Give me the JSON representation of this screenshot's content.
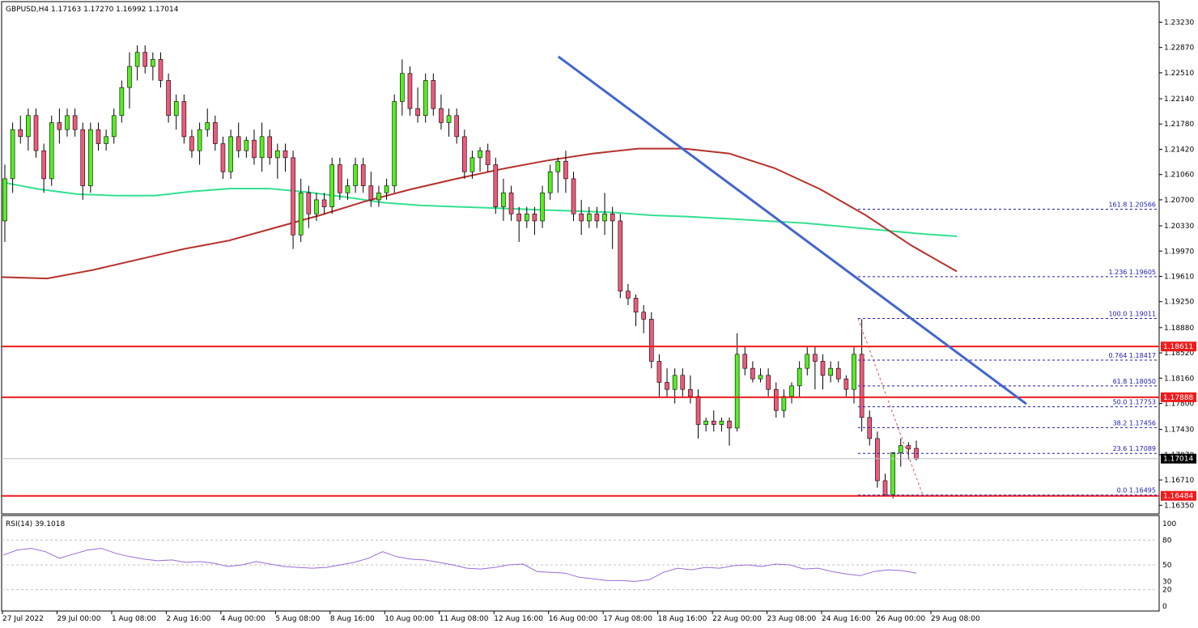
{
  "header": {
    "text": "GBPUSD,H4  1.17163 1.17270 1.16992 1.17014"
  },
  "rsi": {
    "label": "RSI(14) 39.1018",
    "ticks": [
      "100",
      "80",
      "50",
      "30",
      "20",
      "0"
    ],
    "levels": [
      100,
      80,
      50,
      30,
      20,
      0
    ]
  },
  "colors": {
    "bull": "#55ee22",
    "bear": "#ee5a7a",
    "ma_fast": "#b5302a",
    "ma_slow": "#33e090",
    "trend": "#4466cc",
    "hline": "#ee1c1c",
    "fib": "#1b1bb0",
    "rsi": "#9b6bd6"
  },
  "chart_data": {
    "type": "candlestick",
    "symbol": "GBPUSD",
    "timeframe": "H4",
    "ylim": [
      1.1625,
      1.235
    ],
    "y_ticks": [
      "1.23230",
      "1.22870",
      "1.22510",
      "1.22140",
      "1.21780",
      "1.21420",
      "1.21060",
      "1.20700",
      "1.20330",
      "1.19970",
      "1.19610",
      "1.19250",
      "1.18880",
      "1.18520",
      "1.18160",
      "1.17800",
      "1.17430",
      "1.17070",
      "1.16710",
      "1.16350"
    ],
    "x_labels": [
      "27 Jul 2022",
      "29 Jul 00:00",
      "1 Aug 08:00",
      "2 Aug 16:00",
      "4 Aug 00:00",
      "5 Aug 08:00",
      "8 Aug 16:00",
      "10 Aug 00:00",
      "11 Aug 08:00",
      "12 Aug 16:00",
      "16 Aug 00:00",
      "17 Aug 08:00",
      "18 Aug 16:00",
      "22 Aug 00:00",
      "23 Aug 08:00",
      "24 Aug 16:00",
      "26 Aug 00:00",
      "29 Aug 08:00"
    ],
    "price_labels": {
      "current": "1.17014",
      "resistance_1": "1.18611",
      "resistance_2": "1.17888",
      "support": "1.16484"
    },
    "horizontal_levels": [
      1.18611,
      1.17888,
      1.16484
    ],
    "current_price": 1.17014,
    "fibonacci": [
      {
        "label": "161.8 1.20566",
        "price": 1.20566
      },
      {
        "label": "1.236 1.19605",
        "price": 1.19605
      },
      {
        "label": "100.0 1.19011",
        "price": 1.19011
      },
      {
        "label": "0.764 1.18417",
        "price": 1.18417
      },
      {
        "label": "61.8 1.18050",
        "price": 1.1805
      },
      {
        "label": "50.0 1.17753",
        "price": 1.17753
      },
      {
        "label": "38.2 1.17456",
        "price": 1.17456
      },
      {
        "label": "23.6 1.17089",
        "price": 1.17089
      },
      {
        "label": "0.0 1.16495",
        "price": 1.16495
      }
    ],
    "candles": [
      [
        1.204,
        1.212,
        1.201,
        1.21
      ],
      [
        1.21,
        1.218,
        1.208,
        1.217
      ],
      [
        1.217,
        1.219,
        1.215,
        1.216
      ],
      [
        1.216,
        1.22,
        1.214,
        1.219
      ],
      [
        1.219,
        1.22,
        1.213,
        1.214
      ],
      [
        1.214,
        1.215,
        1.208,
        1.21
      ],
      [
        1.21,
        1.219,
        1.209,
        1.218
      ],
      [
        1.218,
        1.22,
        1.215,
        1.217
      ],
      [
        1.217,
        1.22,
        1.216,
        1.219
      ],
      [
        1.219,
        1.22,
        1.216,
        1.217
      ],
      [
        1.217,
        1.218,
        1.207,
        1.209
      ],
      [
        1.209,
        1.218,
        1.208,
        1.217
      ],
      [
        1.217,
        1.218,
        1.214,
        1.215
      ],
      [
        1.215,
        1.217,
        1.214,
        1.216
      ],
      [
        1.216,
        1.22,
        1.215,
        1.219
      ],
      [
        1.219,
        1.224,
        1.218,
        1.223
      ],
      [
        1.223,
        1.228,
        1.22,
        1.226
      ],
      [
        1.226,
        1.229,
        1.224,
        1.228
      ],
      [
        1.228,
        1.229,
        1.225,
        1.226
      ],
      [
        1.226,
        1.228,
        1.224,
        1.227
      ],
      [
        1.227,
        1.228,
        1.223,
        1.224
      ],
      [
        1.224,
        1.225,
        1.218,
        1.219
      ],
      [
        1.219,
        1.222,
        1.217,
        1.221
      ],
      [
        1.221,
        1.222,
        1.215,
        1.216
      ],
      [
        1.216,
        1.217,
        1.213,
        1.214
      ],
      [
        1.214,
        1.218,
        1.212,
        1.217
      ],
      [
        1.217,
        1.22,
        1.216,
        1.218
      ],
      [
        1.218,
        1.219,
        1.214,
        1.215
      ],
      [
        1.215,
        1.216,
        1.21,
        1.211
      ],
      [
        1.211,
        1.217,
        1.21,
        1.216
      ],
      [
        1.216,
        1.218,
        1.213,
        1.214
      ],
      [
        1.214,
        1.216,
        1.213,
        1.2155
      ],
      [
        1.2155,
        1.217,
        1.212,
        1.213
      ],
      [
        1.213,
        1.218,
        1.211,
        1.216
      ],
      [
        1.216,
        1.217,
        1.212,
        1.213
      ],
      [
        1.213,
        1.215,
        1.21,
        1.214
      ],
      [
        1.214,
        1.215,
        1.211,
        1.213
      ],
      [
        1.213,
        1.214,
        1.2,
        1.202
      ],
      [
        1.202,
        1.21,
        1.201,
        1.208
      ],
      [
        1.208,
        1.209,
        1.203,
        1.205
      ],
      [
        1.205,
        1.208,
        1.204,
        1.207
      ],
      [
        1.207,
        1.208,
        1.205,
        1.206
      ],
      [
        1.206,
        1.213,
        1.205,
        1.212
      ],
      [
        1.212,
        1.213,
        1.207,
        1.208
      ],
      [
        1.208,
        1.21,
        1.207,
        1.209
      ],
      [
        1.209,
        1.213,
        1.208,
        1.212
      ],
      [
        1.212,
        1.213,
        1.208,
        1.209
      ],
      [
        1.209,
        1.211,
        1.206,
        1.207
      ],
      [
        1.207,
        1.209,
        1.206,
        1.208
      ],
      [
        1.208,
        1.21,
        1.207,
        1.209
      ],
      [
        1.209,
        1.222,
        1.208,
        1.221
      ],
      [
        1.221,
        1.227,
        1.219,
        1.225
      ],
      [
        1.225,
        1.226,
        1.219,
        1.22
      ],
      [
        1.22,
        1.223,
        1.218,
        1.219
      ],
      [
        1.219,
        1.225,
        1.218,
        1.224
      ],
      [
        1.224,
        1.225,
        1.219,
        1.22
      ],
      [
        1.22,
        1.222,
        1.217,
        1.218
      ],
      [
        1.218,
        1.22,
        1.216,
        1.219
      ],
      [
        1.219,
        1.22,
        1.215,
        1.216
      ],
      [
        1.216,
        1.217,
        1.21,
        1.211
      ],
      [
        1.211,
        1.214,
        1.21,
        1.213
      ],
      [
        1.213,
        1.2145,
        1.211,
        1.214
      ],
      [
        1.214,
        1.215,
        1.211,
        1.212
      ],
      [
        1.212,
        1.213,
        1.205,
        1.206
      ],
      [
        1.206,
        1.21,
        1.204,
        1.208
      ],
      [
        1.208,
        1.209,
        1.204,
        1.205
      ],
      [
        1.205,
        1.206,
        1.201,
        1.204
      ],
      [
        1.204,
        1.206,
        1.203,
        1.205
      ],
      [
        1.205,
        1.206,
        1.202,
        1.204
      ],
      [
        1.204,
        1.209,
        1.203,
        1.208
      ],
      [
        1.208,
        1.212,
        1.207,
        1.211
      ],
      [
        1.211,
        1.213,
        1.208,
        1.2125
      ],
      [
        1.2125,
        1.214,
        1.208,
        1.21
      ],
      [
        1.21,
        1.211,
        1.204,
        1.205
      ],
      [
        1.205,
        1.207,
        1.202,
        1.204
      ],
      [
        1.204,
        1.206,
        1.203,
        1.205
      ],
      [
        1.205,
        1.206,
        1.203,
        1.204
      ],
      [
        1.204,
        1.208,
        1.202,
        1.205
      ],
      [
        1.205,
        1.206,
        1.2,
        1.204
      ],
      [
        1.204,
        1.205,
        1.193,
        1.194
      ],
      [
        1.194,
        1.195,
        1.192,
        1.193
      ],
      [
        1.193,
        1.1935,
        1.189,
        1.191
      ],
      [
        1.191,
        1.192,
        1.188,
        1.19
      ],
      [
        1.19,
        1.191,
        1.183,
        1.184
      ],
      [
        1.184,
        1.185,
        1.179,
        1.181
      ],
      [
        1.181,
        1.183,
        1.179,
        1.18
      ],
      [
        1.18,
        1.183,
        1.178,
        1.182
      ],
      [
        1.182,
        1.183,
        1.179,
        1.18
      ],
      [
        1.18,
        1.182,
        1.178,
        1.179
      ],
      [
        1.179,
        1.18,
        1.173,
        1.175
      ],
      [
        1.175,
        1.176,
        1.174,
        1.1755
      ],
      [
        1.1755,
        1.177,
        1.174,
        1.175
      ],
      [
        1.175,
        1.176,
        1.174,
        1.1755
      ],
      [
        1.1755,
        1.176,
        1.172,
        1.1745
      ],
      [
        1.1745,
        1.188,
        1.174,
        1.185
      ],
      [
        1.185,
        1.186,
        1.182,
        1.183
      ],
      [
        1.183,
        1.184,
        1.181,
        1.1815
      ],
      [
        1.1815,
        1.183,
        1.181,
        1.182
      ],
      [
        1.182,
        1.183,
        1.179,
        1.18
      ],
      [
        1.18,
        1.181,
        1.176,
        1.177
      ],
      [
        1.177,
        1.18,
        1.176,
        1.179
      ],
      [
        1.179,
        1.181,
        1.178,
        1.1805
      ],
      [
        1.1805,
        1.184,
        1.179,
        1.183
      ],
      [
        1.183,
        1.186,
        1.182,
        1.185
      ],
      [
        1.185,
        1.186,
        1.18,
        1.184
      ],
      [
        1.184,
        1.185,
        1.18,
        1.182
      ],
      [
        1.182,
        1.184,
        1.181,
        1.183
      ],
      [
        1.183,
        1.184,
        1.181,
        1.1815
      ],
      [
        1.1815,
        1.182,
        1.179,
        1.18
      ],
      [
        1.18,
        1.186,
        1.178,
        1.185
      ],
      [
        1.185,
        1.19,
        1.174,
        1.176
      ],
      [
        1.176,
        1.177,
        1.172,
        1.173
      ],
      [
        1.173,
        1.174,
        1.166,
        1.167
      ],
      [
        1.167,
        1.168,
        1.165,
        1.165
      ],
      [
        1.165,
        1.171,
        1.1645,
        1.171
      ],
      [
        1.171,
        1.173,
        1.169,
        1.172
      ],
      [
        1.172,
        1.1725,
        1.17,
        1.1715
      ],
      [
        1.1716,
        1.1727,
        1.1699,
        1.1701
      ]
    ],
    "ma_slow": [
      1.2095,
      1.2085,
      1.2078,
      1.2076,
      1.2076,
      1.2082,
      1.2086,
      1.2086,
      1.2081,
      1.2074,
      1.2066,
      1.2062,
      1.206,
      1.2058,
      1.2056,
      1.2054,
      1.2052,
      1.2048,
      1.2046,
      1.2043,
      1.204,
      1.2037,
      1.2032,
      1.2027,
      1.2022,
      1.2018
    ],
    "ma_fast": [
      1.196,
      1.1958,
      1.197,
      1.1985,
      1.2,
      1.2012,
      1.203,
      1.2048,
      1.2068,
      1.2085,
      1.21,
      1.2114,
      1.2126,
      1.2136,
      1.2143,
      1.2143,
      1.2136,
      1.2115,
      1.2085,
      1.2048,
      1.2005,
      1.1968
    ],
    "rsi_values": [
      62,
      68,
      70,
      66,
      58,
      63,
      68,
      70,
      64,
      60,
      57,
      55,
      56,
      53,
      54,
      52,
      48,
      50,
      54,
      51,
      48,
      47,
      46,
      47,
      50,
      53,
      58,
      66,
      60,
      57,
      56,
      53,
      50,
      46,
      45,
      47,
      50,
      51,
      42,
      41,
      40,
      35,
      33,
      31,
      31,
      30,
      32,
      41,
      46,
      44,
      47,
      46,
      49,
      50,
      48,
      51,
      50,
      45,
      46,
      42,
      39,
      37,
      42,
      44,
      43,
      40
    ]
  }
}
